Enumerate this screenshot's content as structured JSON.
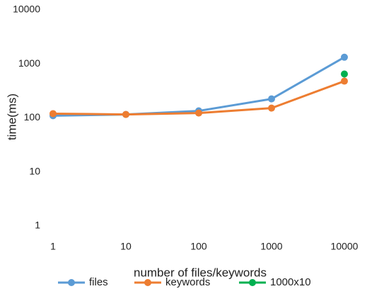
{
  "chart_data": {
    "type": "line",
    "x_label": "number of files/keywords",
    "y_label": "time(ms)",
    "x": [
      1,
      10,
      100,
      1000,
      10000
    ],
    "xlim": [
      1,
      10000
    ],
    "xticks": [
      1,
      10,
      100,
      1000,
      10000
    ],
    "xscale": "log",
    "ylim": [
      1,
      10000
    ],
    "yticks": [
      1,
      10,
      100,
      1000,
      10000
    ],
    "yscale": "log",
    "grid": false,
    "legend": "bottom",
    "series": [
      {
        "name": "files",
        "color": "#5b9bd5",
        "values": [
          110,
          116,
          135,
          225,
          1330
        ]
      },
      {
        "name": "keywords",
        "color": "#ed7d31",
        "values": [
          120,
          116,
          123,
          152,
          480
        ]
      },
      {
        "name": "1000x10",
        "color": "#00b050",
        "values": [
          null,
          null,
          null,
          null,
          650
        ]
      }
    ]
  }
}
